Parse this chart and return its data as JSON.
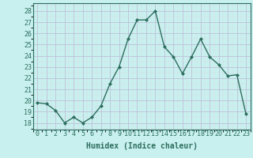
{
  "x": [
    0,
    1,
    2,
    3,
    4,
    5,
    6,
    7,
    8,
    9,
    10,
    11,
    12,
    13,
    14,
    15,
    16,
    17,
    18,
    19,
    20,
    21,
    22,
    23
  ],
  "y": [
    19.8,
    19.7,
    19.1,
    18.0,
    18.5,
    18.0,
    18.5,
    19.5,
    21.5,
    23.0,
    25.5,
    27.2,
    27.2,
    28.0,
    24.8,
    23.9,
    22.4,
    23.9,
    25.5,
    23.9,
    23.2,
    22.2,
    22.3,
    18.8
  ],
  "line_color": "#2d6e5e",
  "marker_color": "#2d6e5e",
  "bg_color": "#c8f0ee",
  "plot_bg_color": "#c8f0ee",
  "major_grid_color": "#c0c0d8",
  "minor_grid_color": "#d8d8e8",
  "xlabel": "Humidex (Indice chaleur)",
  "ytick_labels": [
    "18",
    "19",
    "20",
    "21",
    "22",
    "23",
    "24",
    "25",
    "26",
    "27",
    "28"
  ],
  "ytick_values": [
    18,
    19,
    20,
    21,
    22,
    23,
    24,
    25,
    26,
    27,
    28
  ],
  "ylim": [
    17.4,
    28.7
  ],
  "xlim": [
    -0.5,
    23.5
  ],
  "axis_color": "#2d6e5e",
  "tick_color": "#2d6e5e",
  "label_color": "#2d6e5e",
  "font_size_label": 7,
  "font_size_tick": 6,
  "linewidth": 1.0,
  "markersize": 2.0
}
